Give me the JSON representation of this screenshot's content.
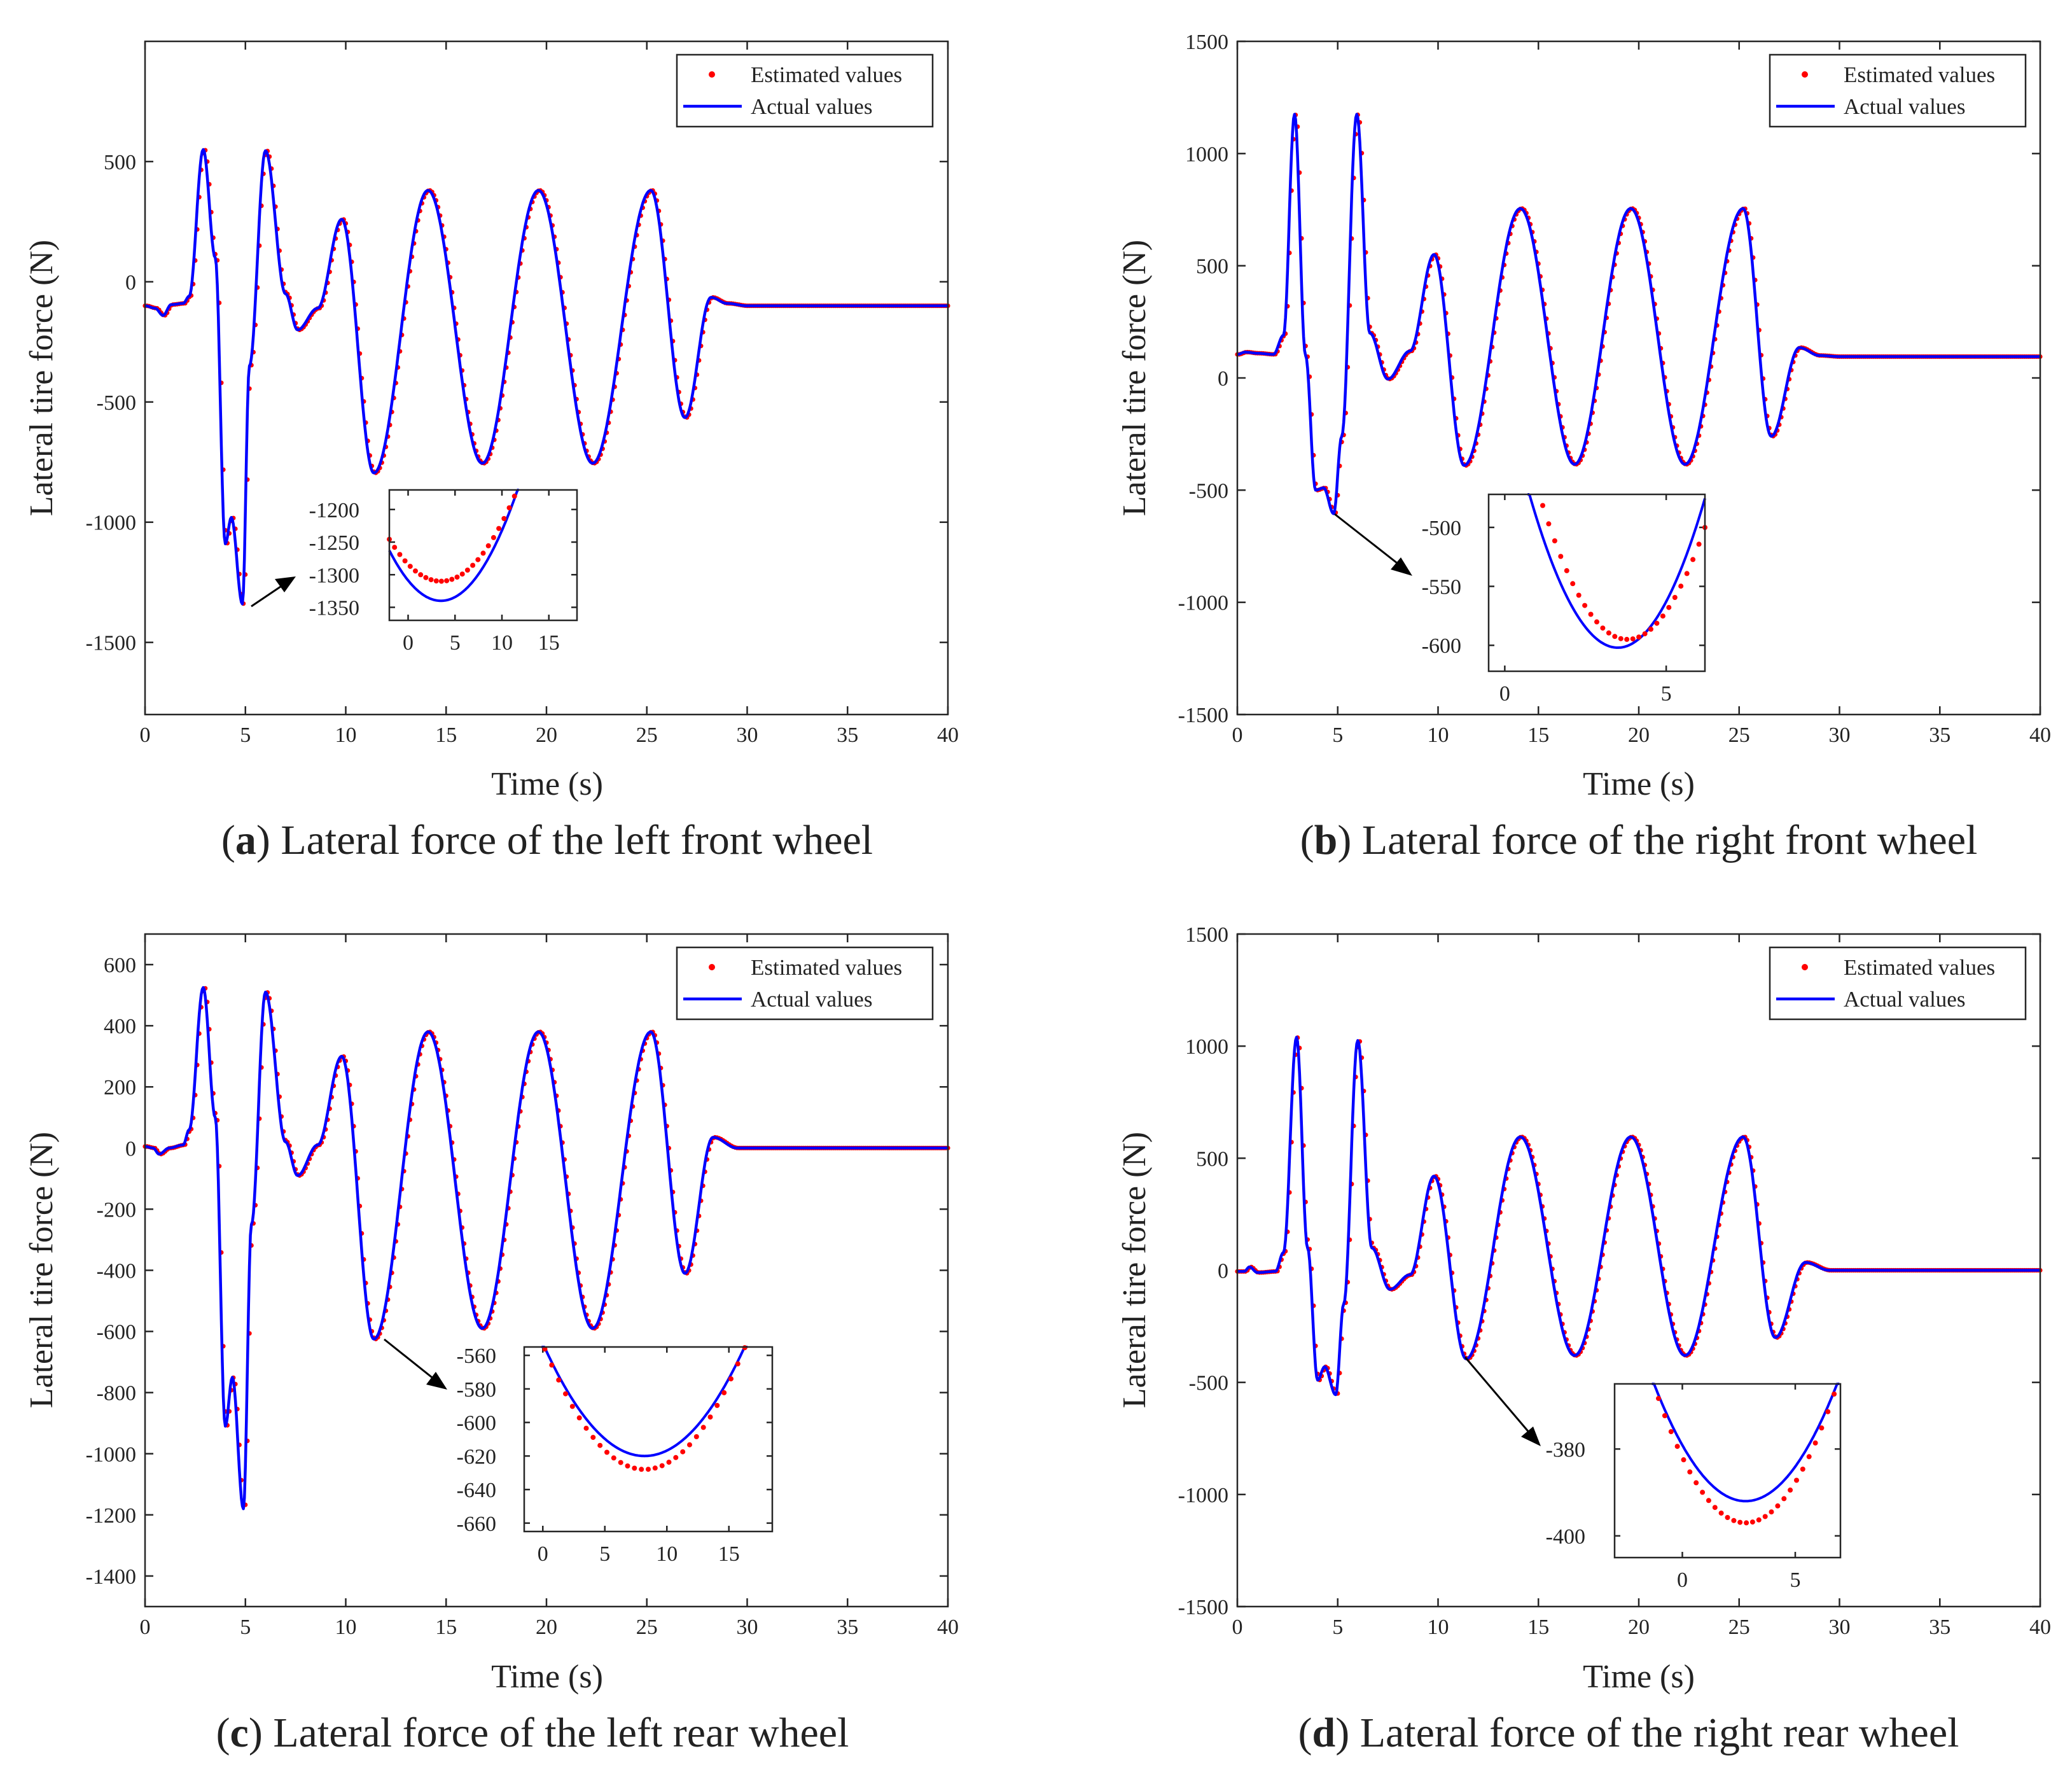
{
  "figure": {
    "legend": {
      "estimated": "Estimated values",
      "actual": "Actual values"
    }
  },
  "chart_data": [
    {
      "id": "a",
      "type": "line",
      "caption_letter": "a",
      "caption": "Lateral force of the left front wheel",
      "title": "(a) Lateral force of the left front wheel",
      "xlabel": "Time (s)",
      "ylabel": "Lateral tire force (N)",
      "xlim": [
        0,
        40
      ],
      "ylim": [
        -1800,
        1000
      ],
      "xticks": [
        0,
        5,
        10,
        15,
        20,
        25,
        30,
        35,
        40
      ],
      "yticks": [
        -1500,
        -1000,
        -500,
        0,
        500
      ],
      "legend_position": "top-right",
      "series": [
        {
          "name": "Estimated values",
          "style": "red dots"
        },
        {
          "name": "Actual values",
          "style": "blue line"
        }
      ],
      "key_points": [
        [
          0,
          -100
        ],
        [
          0.5,
          -110
        ],
        [
          0.9,
          -140
        ],
        [
          1.3,
          -95
        ],
        [
          1.9,
          -90
        ],
        [
          2.2,
          -60
        ],
        [
          2.9,
          550
        ],
        [
          3.5,
          100
        ],
        [
          4.0,
          -1090
        ],
        [
          4.3,
          -980
        ],
        [
          4.85,
          -1340
        ],
        [
          5.2,
          -350
        ],
        [
          6.0,
          545
        ],
        [
          7.0,
          -50
        ],
        [
          7.6,
          -200
        ],
        [
          8.6,
          -110
        ],
        [
          9.8,
          260
        ],
        [
          11.4,
          -795
        ],
        [
          14.1,
          380
        ],
        [
          16.8,
          -755
        ],
        [
          19.6,
          380
        ],
        [
          22.3,
          -755
        ],
        [
          25.2,
          380
        ],
        [
          26.9,
          -565
        ],
        [
          28.2,
          -65
        ],
        [
          29.0,
          -90
        ],
        [
          30,
          -100
        ],
        [
          40,
          -100
        ]
      ],
      "inset": {
        "xlim": [
          -2,
          18
        ],
        "ylim": [
          -1370,
          -1170
        ],
        "xticks": [
          0,
          5,
          10,
          15
        ],
        "yticks": [
          -1200,
          -1250,
          -1300,
          -1350
        ],
        "actual_min": -1340,
        "estimated_min": -1310,
        "actual_min_x": 3.5,
        "estimated_min_x": 3.5
      }
    },
    {
      "id": "b",
      "type": "line",
      "caption_letter": "b",
      "caption": "Lateral force of the right front wheel",
      "title": "(b) Lateral force of the right front wheel",
      "xlabel": "Time (s)",
      "ylabel": "Lateral tire force (N)",
      "xlim": [
        0,
        40
      ],
      "ylim": [
        -1500,
        1500
      ],
      "xticks": [
        0,
        5,
        10,
        15,
        20,
        25,
        30,
        35,
        40
      ],
      "yticks": [
        -1500,
        -1000,
        -500,
        0,
        500,
        1000,
        1500
      ],
      "legend_position": "top-right",
      "series": [
        {
          "name": "Estimated values",
          "style": "red dots"
        },
        {
          "name": "Actual values",
          "style": "blue line"
        }
      ],
      "key_points": [
        [
          0,
          105
        ],
        [
          0.4,
          115
        ],
        [
          1.0,
          110
        ],
        [
          1.8,
          105
        ],
        [
          2.3,
          190
        ],
        [
          2.85,
          1175
        ],
        [
          3.4,
          100
        ],
        [
          3.9,
          -500
        ],
        [
          4.3,
          -490
        ],
        [
          4.8,
          -605
        ],
        [
          5.2,
          -260
        ],
        [
          5.95,
          1175
        ],
        [
          6.6,
          200
        ],
        [
          7.5,
          -5
        ],
        [
          8.6,
          120
        ],
        [
          9.8,
          550
        ],
        [
          11.3,
          -390
        ],
        [
          14.1,
          755
        ],
        [
          16.8,
          -385
        ],
        [
          19.6,
          755
        ],
        [
          22.3,
          -385
        ],
        [
          25.2,
          755
        ],
        [
          26.6,
          -260
        ],
        [
          28.0,
          135
        ],
        [
          29.0,
          100
        ],
        [
          30,
          95
        ],
        [
          40,
          95
        ]
      ],
      "inset": {
        "xlim": [
          -0.5,
          6.2
        ],
        "ylim": [
          -622,
          -472
        ],
        "xticks": [
          0,
          5
        ],
        "yticks": [
          -500,
          -550,
          -600
        ],
        "actual_min": -602,
        "estimated_min": -595,
        "actual_min_x": 3.5,
        "estimated_min_x": 3.8
      }
    },
    {
      "id": "c",
      "type": "line",
      "caption_letter": "c",
      "caption": "Lateral force of the left rear wheel",
      "title": "(c) Lateral force of the left rear wheel",
      "xlabel": "Time (s)",
      "ylabel": "Lateral tire force (N)",
      "xlim": [
        0,
        40
      ],
      "ylim": [
        -1500,
        700
      ],
      "xticks": [
        0,
        5,
        10,
        15,
        20,
        25,
        30,
        35,
        40
      ],
      "yticks": [
        -1400,
        -1200,
        -1000,
        -800,
        -600,
        -400,
        -200,
        0,
        200,
        400,
        600
      ],
      "legend_position": "top-right",
      "series": [
        {
          "name": "Estimated values",
          "style": "red dots"
        },
        {
          "name": "Actual values",
          "style": "blue line"
        }
      ],
      "key_points": [
        [
          0,
          5
        ],
        [
          0.4,
          0
        ],
        [
          0.7,
          -20
        ],
        [
          1.2,
          0
        ],
        [
          1.9,
          10
        ],
        [
          2.2,
          60
        ],
        [
          2.9,
          525
        ],
        [
          3.5,
          100
        ],
        [
          4.0,
          -910
        ],
        [
          4.35,
          -750
        ],
        [
          4.9,
          -1180
        ],
        [
          5.3,
          -250
        ],
        [
          6.0,
          510
        ],
        [
          7.0,
          20
        ],
        [
          7.6,
          -90
        ],
        [
          8.6,
          10
        ],
        [
          9.8,
          300
        ],
        [
          11.4,
          -625
        ],
        [
          14.1,
          380
        ],
        [
          16.8,
          -590
        ],
        [
          19.6,
          380
        ],
        [
          22.3,
          -590
        ],
        [
          25.2,
          380
        ],
        [
          26.9,
          -410
        ],
        [
          28.3,
          35
        ],
        [
          29.5,
          0
        ],
        [
          30,
          0
        ],
        [
          40,
          0
        ]
      ],
      "inset": {
        "xlim": [
          -1.5,
          18.5
        ],
        "ylim": [
          -665,
          -555
        ],
        "xticks": [
          0,
          5,
          10,
          15
        ],
        "yticks": [
          -560,
          -580,
          -600,
          -620,
          -640,
          -660
        ],
        "actual_min": -620,
        "estimated_min": -628,
        "actual_min_x": 8.2,
        "estimated_min_x": 8.2
      }
    },
    {
      "id": "d",
      "type": "line",
      "caption_letter": "d",
      "caption": "Lateral force of the right rear wheel",
      "title": "(d) Lateral force of the right rear wheel",
      "xlabel": "Time (s)",
      "ylabel": "Lateral tire force (N)",
      "xlim": [
        0,
        40
      ],
      "ylim": [
        -1500,
        1500
      ],
      "xticks": [
        0,
        5,
        10,
        15,
        20,
        25,
        30,
        35,
        40
      ],
      "yticks": [
        -1500,
        -1000,
        -500,
        0,
        500,
        1000,
        1500
      ],
      "legend_position": "top-right",
      "series": [
        {
          "name": "Estimated values",
          "style": "red dots"
        },
        {
          "name": "Actual values",
          "style": "blue line"
        }
      ],
      "key_points": [
        [
          0,
          -5
        ],
        [
          0.35,
          -5
        ],
        [
          0.6,
          15
        ],
        [
          1.0,
          -10
        ],
        [
          1.9,
          -5
        ],
        [
          2.3,
          80
        ],
        [
          2.95,
          1040
        ],
        [
          3.5,
          100
        ],
        [
          4.0,
          -490
        ],
        [
          4.35,
          -430
        ],
        [
          4.9,
          -555
        ],
        [
          5.3,
          -150
        ],
        [
          6.0,
          1025
        ],
        [
          6.7,
          100
        ],
        [
          7.6,
          -85
        ],
        [
          8.6,
          -20
        ],
        [
          9.8,
          420
        ],
        [
          11.4,
          -395
        ],
        [
          14.1,
          595
        ],
        [
          16.8,
          -380
        ],
        [
          19.6,
          595
        ],
        [
          22.3,
          -380
        ],
        [
          25.2,
          595
        ],
        [
          26.8,
          -300
        ],
        [
          28.3,
          35
        ],
        [
          29.5,
          0
        ],
        [
          30,
          0
        ],
        [
          40,
          0
        ]
      ],
      "inset": {
        "xlim": [
          -3,
          7
        ],
        "ylim": [
          -405,
          -365
        ],
        "xticks": [
          0,
          5
        ],
        "yticks": [
          -380,
          -400
        ],
        "actual_min": -392,
        "estimated_min": -397,
        "actual_min_x": 2.8,
        "estimated_min_x": 2.8
      }
    }
  ]
}
